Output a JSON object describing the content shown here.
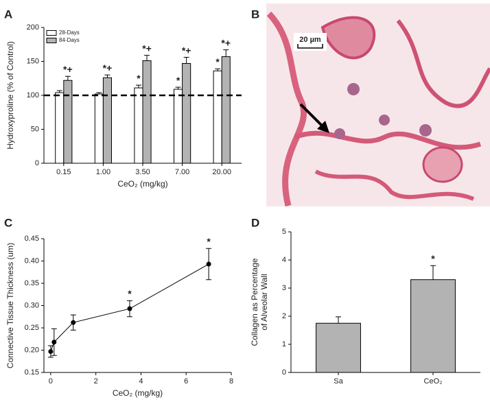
{
  "chart_data": [
    {
      "type": "bar",
      "panel": "A",
      "ylabel": "Hydroxyproline (% of Control)",
      "xlabel": "CeO₂ (mg/kg)",
      "categories": [
        "0.15",
        "1.00",
        "3.50",
        "7.00",
        "20.00"
      ],
      "series": [
        {
          "name": "28-Days",
          "color": "#ffffff",
          "values": [
            104,
            102,
            111,
            109,
            136
          ],
          "errors": [
            3,
            2,
            4,
            3,
            3
          ],
          "annotations": [
            null,
            null,
            "*",
            "*",
            "*"
          ]
        },
        {
          "name": "84-Days",
          "color": "#b3b3b3",
          "values": [
            122,
            126,
            151,
            147,
            157
          ],
          "errors": [
            6,
            4,
            8,
            9,
            10
          ],
          "annotations": [
            "*+",
            "*+",
            "*+",
            "*+",
            "*+"
          ]
        }
      ],
      "ylim": [
        0,
        200
      ],
      "yticks": [
        0,
        50,
        100,
        150,
        200
      ],
      "reference_line": 100,
      "legend": "upper left"
    },
    {
      "type": "line",
      "panel": "C",
      "ylabel": "Connective Tissue Thickness (um)",
      "xlabel": "CeO₂ (mg/kg)",
      "x": [
        0,
        0.15,
        1,
        3.5,
        7
      ],
      "series": [
        {
          "name": null,
          "color": "#000000",
          "values": [
            0.197,
            0.218,
            0.262,
            0.293,
            0.393
          ],
          "errors": [
            0.013,
            0.03,
            0.017,
            0.018,
            0.035
          ],
          "annotations": [
            null,
            null,
            null,
            "*",
            "*"
          ]
        }
      ],
      "xlim": [
        -0.3,
        8
      ],
      "xticks": [
        0,
        2,
        4,
        6,
        8
      ],
      "ylim": [
        0.15,
        0.45
      ],
      "yticks": [
        0.15,
        {
          "value": 0.2,
          "label": "0.20"
        },
        0.25,
        {
          "value": 0.3,
          "label": "0.30"
        },
        0.35,
        {
          "value": 0.4,
          "label": "0.40"
        },
        0.45
      ]
    },
    {
      "type": "bar",
      "panel": "D",
      "ylabel": [
        "Collagen as Percentage",
        "of Alveolar Wall"
      ],
      "categories": [
        "Sa",
        "CeO₂"
      ],
      "series": [
        {
          "name": null,
          "color": "#b3b3b3",
          "values": [
            1.75,
            3.3
          ],
          "errors": [
            0.23,
            0.5
          ],
          "annotations": [
            null,
            "*"
          ]
        }
      ],
      "ylim": [
        0,
        5
      ],
      "yticks": [
        0,
        1,
        2,
        3,
        4,
        5
      ]
    }
  ],
  "image_panel": {
    "panel": "B",
    "scale_bar": "20 µm"
  }
}
